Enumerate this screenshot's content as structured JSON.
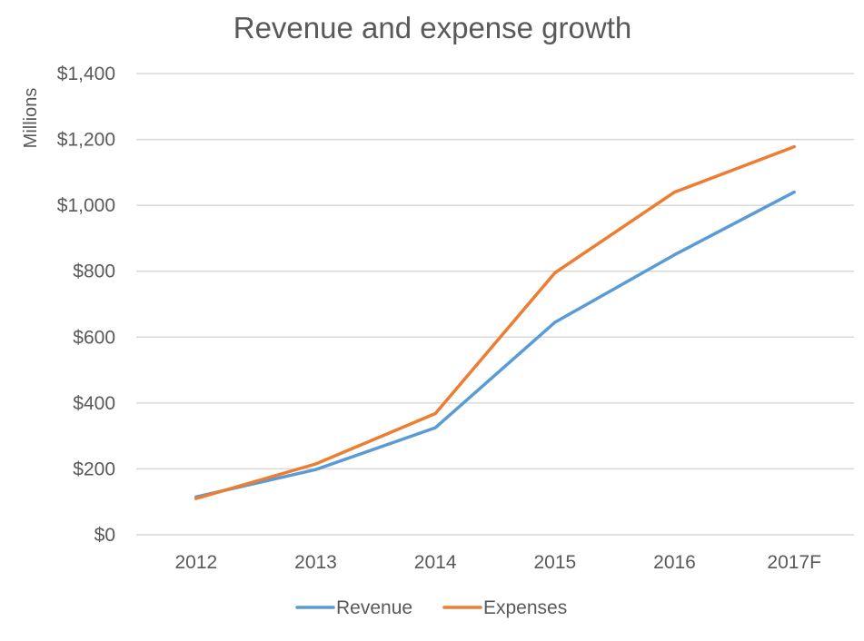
{
  "chart_data": {
    "type": "line",
    "title": "Revenue and expense growth",
    "xlabel": "",
    "ylabel": "Millions",
    "categories": [
      "2012",
      "2013",
      "2014",
      "2015",
      "2016",
      "2017F"
    ],
    "y_ticks": [
      "$0",
      "$200",
      "$400",
      "$600",
      "$800",
      "$1,000",
      "$1,200",
      "$1,400"
    ],
    "ylim": [
      0,
      1400
    ],
    "y_step": 200,
    "grid": true,
    "legend_position": "bottom",
    "series": [
      {
        "name": "Revenue",
        "color": "#5b9bd5",
        "values": [
          115,
          198,
          325,
          645,
          850,
          1040
        ]
      },
      {
        "name": "Expenses",
        "color": "#ed7d31",
        "values": [
          110,
          215,
          368,
          795,
          1040,
          1178
        ]
      }
    ]
  }
}
